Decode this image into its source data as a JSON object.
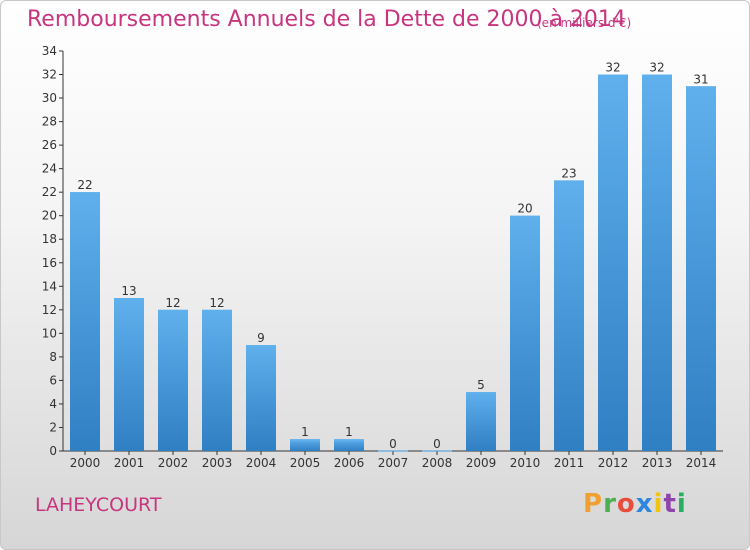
{
  "header": {
    "title": "Remboursements Annuels de la Dette de 2000 à 2014",
    "subtitle": "(en milliers d'€)"
  },
  "footer": {
    "town": "LAHEYCOURT",
    "logo_letters": [
      "P",
      "r",
      "o",
      "x",
      "i",
      "t",
      "i"
    ],
    "logo_colors": [
      "#f0a030",
      "#4caf50",
      "#e74c3c",
      "#2e86de",
      "#f1c40f",
      "#8e44ad",
      "#27ae60"
    ]
  },
  "colors": {
    "bar": "#3f97dc",
    "bar_light": "#5fb0ec",
    "title": "#c8357f"
  },
  "chart_data": {
    "type": "bar",
    "title": "Remboursements Annuels de la Dette de 2000 à 2014",
    "xlabel": "",
    "ylabel": "",
    "categories": [
      "2000",
      "2001",
      "2002",
      "2003",
      "2004",
      "2005",
      "2006",
      "2007",
      "2008",
      "2009",
      "2010",
      "2011",
      "2012",
      "2013",
      "2014"
    ],
    "values": [
      22,
      13,
      12,
      12,
      9,
      1,
      1,
      0,
      0,
      5,
      20,
      23,
      32,
      32,
      31
    ],
    "ylim": [
      0,
      34
    ],
    "yticks": [
      0,
      2,
      4,
      6,
      8,
      10,
      12,
      14,
      16,
      18,
      20,
      22,
      24,
      26,
      28,
      30,
      32,
      34
    ],
    "grid": false
  }
}
